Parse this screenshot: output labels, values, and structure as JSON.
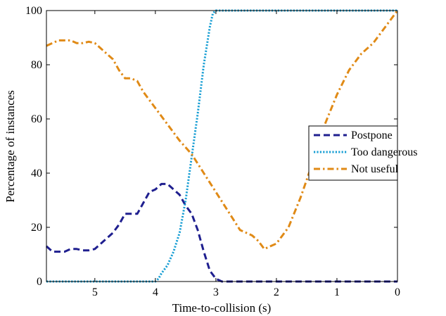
{
  "chart_data": {
    "type": "line",
    "title": "",
    "xlabel": "Time-to-collision (s)",
    "ylabel": "Percentage of instances",
    "xlim": [
      5.8,
      0
    ],
    "ylim": [
      0,
      100
    ],
    "x_reversed": true,
    "x_ticks": [
      5,
      4,
      3,
      2,
      1,
      0
    ],
    "y_ticks": [
      0,
      20,
      40,
      60,
      80,
      100
    ],
    "grid": false,
    "legend_position": "right",
    "series": [
      {
        "name": "Postpone",
        "color": "#1f1f8f",
        "style": "dashed",
        "x": [
          5.8,
          5.7,
          5.6,
          5.5,
          5.4,
          5.3,
          5.2,
          5.1,
          5.0,
          4.9,
          4.8,
          4.7,
          4.6,
          4.5,
          4.4,
          4.3,
          4.2,
          4.1,
          4.0,
          3.9,
          3.8,
          3.7,
          3.6,
          3.5,
          3.4,
          3.3,
          3.2,
          3.1,
          3.0,
          2.9,
          2.5,
          2.0,
          1.5,
          1.0,
          0.5,
          0.0
        ],
        "values": [
          13,
          11,
          11,
          11,
          12,
          12,
          11.5,
          11.5,
          12,
          14,
          16,
          18,
          21,
          25,
          25,
          25,
          29,
          33,
          34,
          36,
          36,
          34,
          32,
          28,
          25,
          19,
          11,
          4,
          1,
          0,
          0,
          0,
          0,
          0,
          0,
          0
        ]
      },
      {
        "name": "Too dangerous",
        "color": "#1a9fd4",
        "style": "dotted",
        "x": [
          5.8,
          4.0,
          3.95,
          3.9,
          3.8,
          3.7,
          3.6,
          3.5,
          3.4,
          3.3,
          3.2,
          3.1,
          3.05,
          3.0,
          2.9,
          2.5,
          2.0,
          1.5,
          1.0,
          0.5,
          0.0
        ],
        "values": [
          0,
          0,
          1,
          3,
          6,
          11,
          18,
          30,
          46,
          62,
          80,
          94,
          99,
          100,
          100,
          100,
          100,
          100,
          100,
          100,
          100
        ]
      },
      {
        "name": "Not useful",
        "color": "#e08a16",
        "style": "dash-dot",
        "x": [
          5.8,
          5.7,
          5.6,
          5.5,
          5.4,
          5.3,
          5.2,
          5.1,
          5.0,
          4.9,
          4.8,
          4.7,
          4.6,
          4.5,
          4.4,
          4.3,
          4.2,
          4.0,
          3.8,
          3.6,
          3.4,
          3.2,
          3.0,
          2.8,
          2.6,
          2.4,
          2.3,
          2.2,
          2.1,
          2.0,
          1.9,
          1.8,
          1.6,
          1.4,
          1.2,
          1.0,
          0.8,
          0.6,
          0.4,
          0.2,
          0.0
        ],
        "values": [
          87,
          88,
          89,
          89,
          89,
          88,
          88,
          88.5,
          88,
          86,
          84,
          82,
          78,
          75,
          75,
          74,
          70,
          64,
          58,
          52,
          47,
          40,
          33,
          26,
          19,
          17,
          15,
          12,
          13,
          14,
          17,
          20,
          31,
          44,
          58,
          69,
          78,
          84,
          88,
          94,
          100
        ]
      }
    ]
  }
}
